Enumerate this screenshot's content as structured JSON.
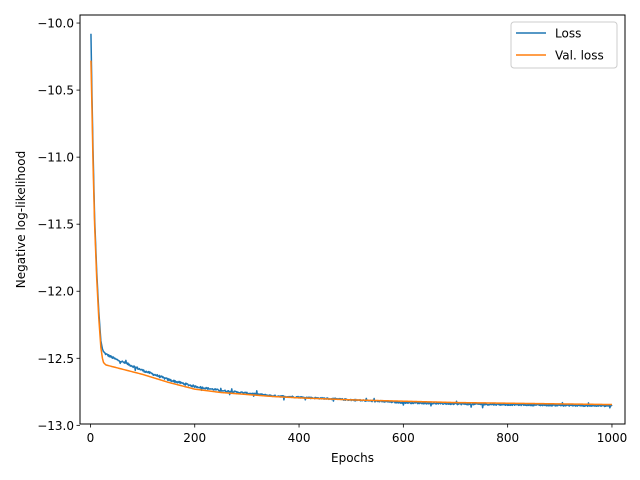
{
  "chart_data": {
    "type": "line",
    "title": "",
    "xlabel": "Epochs",
    "ylabel": "Negative log-likelihood",
    "xlim": [
      -20,
      1025
    ],
    "ylim": [
      -12.99,
      -9.94
    ],
    "xticks": [
      0,
      200,
      400,
      600,
      800,
      1000
    ],
    "xtick_labels": [
      "0",
      "200",
      "400",
      "600",
      "800",
      "1000"
    ],
    "yticks": [
      -10.0,
      -10.5,
      -11.0,
      -11.5,
      -12.0,
      -12.5,
      -13.0
    ],
    "ytick_labels": [
      "−10.0",
      "−10.5",
      "−11.0",
      "−11.5",
      "−12.0",
      "−12.5",
      "−13.0"
    ],
    "grid": false,
    "legend_position": "top-right",
    "series": [
      {
        "name": "Loss",
        "color": "#1f77b4",
        "noisy": true,
        "x": [
          1,
          3,
          5,
          8,
          12,
          16,
          20,
          23,
          25,
          27,
          30,
          40,
          50,
          70,
          100,
          150,
          200,
          250,
          300,
          350,
          400,
          500,
          600,
          700,
          800,
          900,
          1000
        ],
        "y": [
          -10.08,
          -10.55,
          -10.95,
          -11.45,
          -11.85,
          -12.15,
          -12.37,
          -12.43,
          -12.45,
          -12.46,
          -12.47,
          -12.49,
          -12.51,
          -12.54,
          -12.59,
          -12.66,
          -12.71,
          -12.74,
          -12.76,
          -12.78,
          -12.79,
          -12.81,
          -12.83,
          -12.84,
          -12.845,
          -12.85,
          -12.855
        ]
      },
      {
        "name": "Val. loss",
        "color": "#ff7f0e",
        "noisy": false,
        "x": [
          1,
          3,
          5,
          8,
          12,
          16,
          20,
          23,
          25,
          27,
          30,
          40,
          50,
          70,
          100,
          150,
          200,
          250,
          300,
          350,
          400,
          500,
          600,
          700,
          800,
          900,
          1000
        ],
        "y": [
          -10.28,
          -10.65,
          -11.05,
          -11.5,
          -11.9,
          -12.2,
          -12.42,
          -12.5,
          -12.53,
          -12.54,
          -12.55,
          -12.56,
          -12.57,
          -12.59,
          -12.62,
          -12.68,
          -12.73,
          -12.755,
          -12.77,
          -12.785,
          -12.795,
          -12.81,
          -12.82,
          -12.83,
          -12.835,
          -12.84,
          -12.845
        ]
      }
    ]
  }
}
